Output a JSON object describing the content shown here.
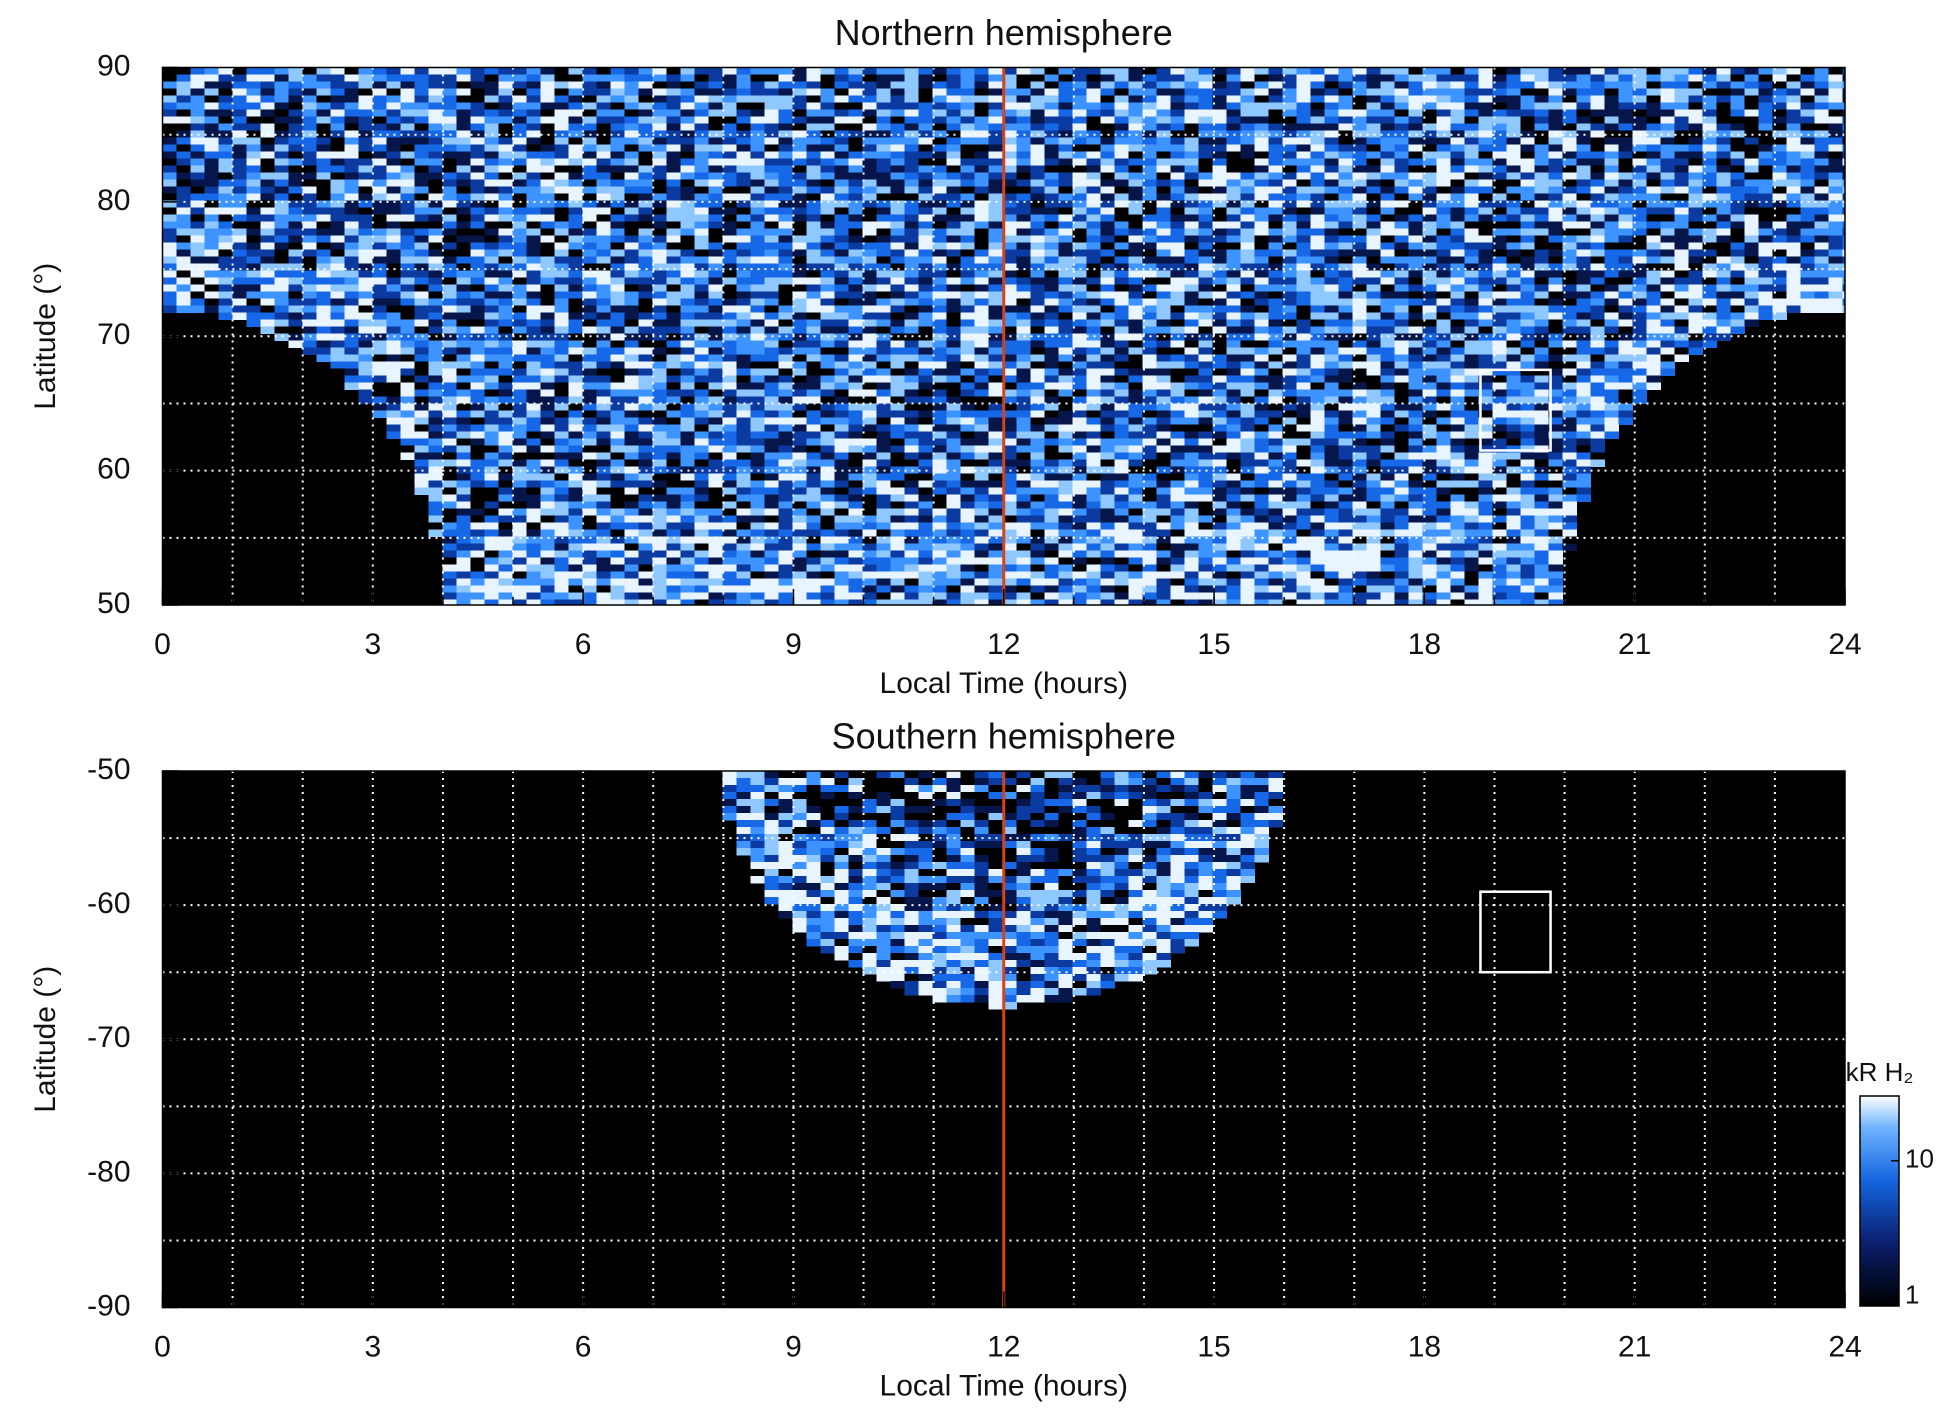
{
  "chart_data": [
    {
      "type": "heatmap",
      "title": "Northern hemisphere",
      "x_label": "Local Time (hours)",
      "y_label": "Latitude (°)",
      "xlim": [
        0,
        24
      ],
      "ylim": [
        50,
        90
      ],
      "xticks": [
        0,
        3,
        6,
        9,
        12,
        15,
        18,
        21,
        24
      ],
      "yticks": [
        50,
        60,
        70,
        80,
        90
      ],
      "xgrid": [
        1,
        2,
        3,
        4,
        5,
        6,
        7,
        8,
        9,
        10,
        11,
        12,
        13,
        14,
        15,
        16,
        17,
        18,
        19,
        20,
        21,
        22,
        23
      ],
      "ygrid": [
        55,
        60,
        65,
        70,
        75,
        80,
        85
      ],
      "marker_line": {
        "x": 12,
        "color": "#d84315"
      },
      "box": {
        "x": [
          18.8,
          19.8
        ],
        "y": [
          61.5,
          67.5
        ]
      }
    },
    {
      "type": "heatmap",
      "title": "Southern hemisphere",
      "x_label": "Local Time (hours)",
      "y_label": "Latitude (°)",
      "xlim": [
        0,
        24
      ],
      "ylim": [
        -90,
        -50
      ],
      "xticks": [
        0,
        3,
        6,
        9,
        12,
        15,
        18,
        21,
        24
      ],
      "yticks": [
        -90,
        -80,
        -70,
        -60,
        -50
      ],
      "xgrid": [
        1,
        2,
        3,
        4,
        5,
        6,
        7,
        8,
        9,
        10,
        11,
        12,
        13,
        14,
        15,
        16,
        17,
        18,
        19,
        20,
        21,
        22,
        23
      ],
      "ygrid": [
        -85,
        -80,
        -75,
        -70,
        -65,
        -60,
        -55
      ],
      "marker_line": {
        "x": 12,
        "color": "#d84315"
      },
      "box": {
        "x": [
          18.8,
          19.8
        ],
        "y": [
          -65,
          -59
        ]
      },
      "colorbar": {
        "label": "kR H₂",
        "lim": [
          0.85,
          30
        ],
        "ticks": [
          1,
          10
        ],
        "log": true
      }
    }
  ]
}
